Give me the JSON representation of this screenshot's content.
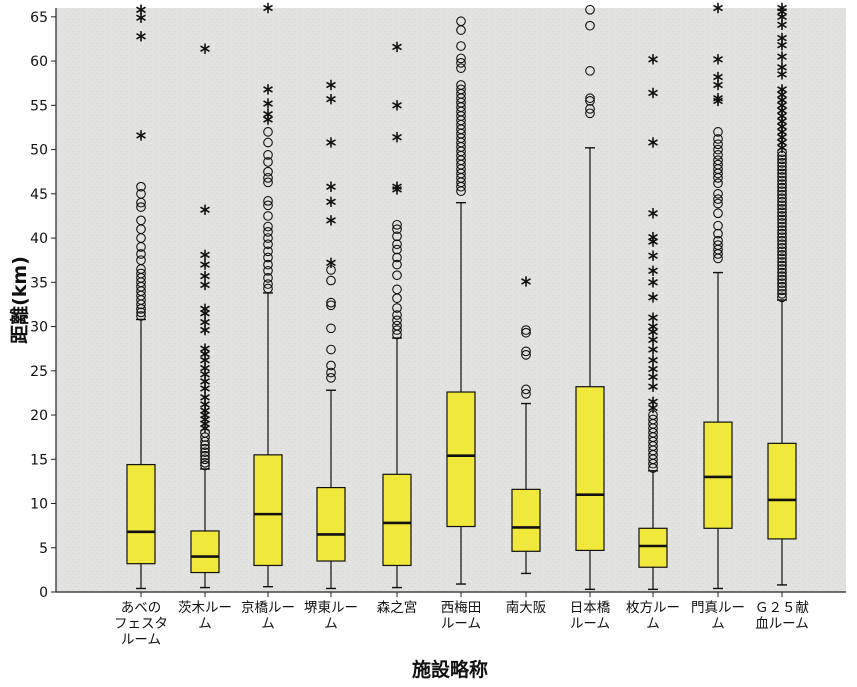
{
  "chart_data": {
    "type": "box",
    "xlabel": "施設略称",
    "ylabel": "距離(km)",
    "ylim": [
      0,
      66
    ],
    "yticks": [
      0,
      5,
      10,
      15,
      20,
      25,
      30,
      35,
      40,
      45,
      50,
      55,
      60,
      65
    ],
    "grid": false,
    "box_color": "#f0e83a",
    "plot_background": "#e2e2e0",
    "categories": [
      {
        "label": [
          "あべの",
          "フェスタ",
          "ルーム"
        ],
        "whisker_low": 0.4,
        "q1": 3.2,
        "median": 6.8,
        "q3": 14.4,
        "whisker_high": 30.8,
        "outliers": [
          31.2,
          31.6,
          32.0,
          32.5,
          33.0,
          33.5,
          34.0,
          34.5,
          35.0,
          35.5,
          36.0,
          36.5,
          37.5,
          38.2,
          39.0,
          40.0,
          41.0,
          42.0,
          43.5,
          44.0,
          45.0,
          45.8
        ],
        "extremes": [
          51.6,
          62.8,
          64.9,
          65.8
        ]
      },
      {
        "label": [
          "茨木ルー",
          "ム"
        ],
        "whisker_low": 0.5,
        "q1": 2.2,
        "median": 4.0,
        "q3": 6.9,
        "whisker_high": 13.9,
        "outliers": [
          14.3,
          14.6,
          15.0,
          15.4,
          15.8,
          16.2,
          16.6,
          17.0,
          17.5,
          18.0
        ],
        "extremes": [
          18.5,
          19.0,
          19.5,
          20.0,
          20.5,
          21.2,
          22.0,
          23.0,
          23.8,
          24.6,
          25.3,
          26.2,
          26.9,
          27.5,
          29.6,
          30.5,
          31.5,
          32.0,
          34.7,
          35.7,
          37.0,
          38.1,
          43.2,
          61.4
        ]
      },
      {
        "label": [
          "京橋ルー",
          "ム"
        ],
        "whisker_low": 0.6,
        "q1": 3.0,
        "median": 8.8,
        "q3": 15.5,
        "whisker_high": 33.8,
        "outliers": [
          34.3,
          34.8,
          35.5,
          36.3,
          37.0,
          37.8,
          38.5,
          39.3,
          40.0,
          40.7,
          41.3,
          42.5,
          43.7,
          44.2,
          46.3,
          46.8,
          47.5,
          48.6,
          49.4,
          50.8,
          52.0
        ],
        "extremes": [
          53.4,
          54.0,
          55.2,
          56.8,
          66.0
        ]
      },
      {
        "label": [
          "堺東ルー",
          "ム"
        ],
        "whisker_low": 0.4,
        "q1": 3.5,
        "median": 6.5,
        "q3": 11.8,
        "whisker_high": 22.8,
        "outliers": [
          24.2,
          24.8,
          25.6,
          27.4,
          29.8,
          32.4,
          32.7,
          35.2,
          36.4
        ],
        "extremes": [
          37.2,
          42.0,
          44.1,
          45.8,
          50.8,
          55.7,
          57.3
        ]
      },
      {
        "label": [
          "森之宮"
        ],
        "whisker_low": 0.5,
        "q1": 3.0,
        "median": 7.8,
        "q3": 13.3,
        "whisker_high": 28.7,
        "outliers": [
          29.1,
          29.6,
          30.1,
          30.7,
          31.3,
          32.1,
          33.2,
          34.2,
          35.8,
          37.0,
          37.8,
          38.7,
          39.3,
          40.2,
          41.0,
          41.5
        ],
        "extremes": [
          45.5,
          45.8,
          51.4,
          55.0,
          61.6
        ]
      },
      {
        "label": [
          "西梅田",
          "ルーム"
        ],
        "whisker_low": 0.9,
        "q1": 7.4,
        "median": 15.4,
        "q3": 22.6,
        "whisker_high": 44.0,
        "outliers": [
          45.3,
          45.8,
          46.3,
          46.8,
          47.3,
          47.8,
          48.3,
          48.8,
          49.3,
          49.8,
          50.3,
          50.8,
          51.3,
          51.8,
          52.3,
          52.8,
          53.3,
          53.8,
          54.3,
          54.8,
          55.3,
          55.8,
          56.3,
          56.8,
          57.3,
          59.2,
          59.8,
          60.3,
          61.7,
          63.5,
          64.5
        ],
        "extremes": []
      },
      {
        "label": [
          "南大阪"
        ],
        "whisker_low": 2.1,
        "q1": 4.6,
        "median": 7.3,
        "q3": 11.6,
        "whisker_high": 21.3,
        "outliers": [
          22.4,
          22.9,
          26.8,
          27.2,
          29.3,
          29.6
        ],
        "extremes": [
          35.1
        ]
      },
      {
        "label": [
          "日本橋",
          "ルーム"
        ],
        "whisker_low": 0.3,
        "q1": 4.7,
        "median": 11.0,
        "q3": 23.2,
        "whisker_high": 50.2,
        "outliers": [
          54.1,
          54.6,
          55.5,
          55.8,
          58.9,
          64.0,
          65.8
        ],
        "extremes": []
      },
      {
        "label": [
          "枚方ルー",
          "ム"
        ],
        "whisker_low": 0.3,
        "q1": 2.8,
        "median": 5.2,
        "q3": 7.2,
        "whisker_high": 13.7,
        "outliers": [
          14.0,
          14.5,
          15.0,
          15.5,
          16.0,
          16.5,
          17.0,
          17.5,
          18.0,
          18.5,
          19.0,
          19.5,
          20.0
        ],
        "extremes": [
          20.8,
          21.5,
          23.2,
          24.3,
          25.2,
          26.2,
          27.4,
          28.5,
          29.4,
          30.0,
          31.0,
          33.3,
          35.0,
          36.3,
          38.0,
          39.6,
          40.1,
          42.8,
          50.8,
          56.4,
          60.2
        ]
      },
      {
        "label": [
          "門真ルー",
          "ム"
        ],
        "whisker_low": 0.4,
        "q1": 7.2,
        "median": 13.0,
        "q3": 19.2,
        "whisker_high": 36.1,
        "outliers": [
          37.7,
          38.2,
          38.7,
          39.2,
          39.7,
          40.5,
          41.4,
          42.8,
          43.9,
          44.4,
          45.0,
          46.2,
          46.8,
          47.3,
          47.8,
          48.3,
          48.8,
          49.4,
          50.0,
          50.6,
          51.2,
          52.0
        ],
        "extremes": [
          55.5,
          55.8,
          57.3,
          58.2,
          60.2,
          66.0
        ]
      },
      {
        "label": [
          "Ｇ２５献",
          "血ルーム"
        ],
        "whisker_low": 0.8,
        "q1": 6.0,
        "median": 10.4,
        "q3": 16.8,
        "whisker_high": 33.0,
        "outliers": [
          33.3,
          33.7,
          34.1,
          34.5,
          34.9,
          35.3,
          35.7,
          36.1,
          36.5,
          36.9,
          37.3,
          37.7,
          38.1,
          38.5,
          38.9,
          39.3,
          39.7,
          40.1,
          40.5,
          40.9,
          41.3,
          41.7,
          42.1,
          42.5,
          42.9,
          43.3,
          43.7,
          44.1,
          44.5,
          44.9,
          45.3,
          45.7,
          46.1,
          46.5,
          46.9,
          47.3,
          47.7,
          48.1,
          48.5,
          48.9,
          49.3,
          49.7
        ],
        "extremes": [
          50.2,
          50.8,
          51.4,
          52.0,
          52.6,
          53.2,
          53.8,
          54.4,
          55.0,
          55.6,
          56.2,
          56.8,
          58.5,
          59.3,
          60.5,
          61.8,
          62.6,
          64.1,
          65.0,
          65.6,
          66.0
        ]
      }
    ]
  }
}
